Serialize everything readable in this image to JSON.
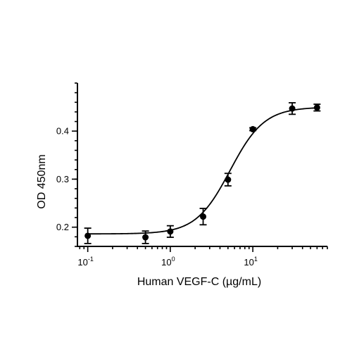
{
  "chart_data": {
    "type": "scatter",
    "title": "",
    "xlabel": "Human VEGF-C (µg/mL)",
    "ylabel": "OD 450nm",
    "x_scale": "log",
    "xlim": [
      0.075,
      80
    ],
    "ylim": [
      0.16,
      0.5
    ],
    "x_ticks": [
      {
        "value": 0.1,
        "base": "10",
        "exp": "-1"
      },
      {
        "value": 1,
        "base": "10",
        "exp": "0"
      },
      {
        "value": 10,
        "base": "10",
        "exp": "1"
      }
    ],
    "y_ticks": [
      {
        "value": 0.2,
        "label": "0.2"
      },
      {
        "value": 0.3,
        "label": "0.3"
      },
      {
        "value": 0.4,
        "label": "0.4"
      }
    ],
    "grid": false,
    "series": [
      {
        "x": [
          0.1,
          0.5,
          1,
          2.5,
          5,
          10,
          30,
          60
        ],
        "y": [
          0.182,
          0.179,
          0.191,
          0.222,
          0.299,
          0.404,
          0.447,
          0.449
        ],
        "error": [
          0.016,
          0.013,
          0.012,
          0.017,
          0.013,
          0.003,
          0.012,
          0.007
        ]
      }
    ],
    "fit": {
      "model": "4PL",
      "bottom": 0.186,
      "top": 0.45,
      "ec50": 5.3,
      "hill": 2.1
    }
  }
}
